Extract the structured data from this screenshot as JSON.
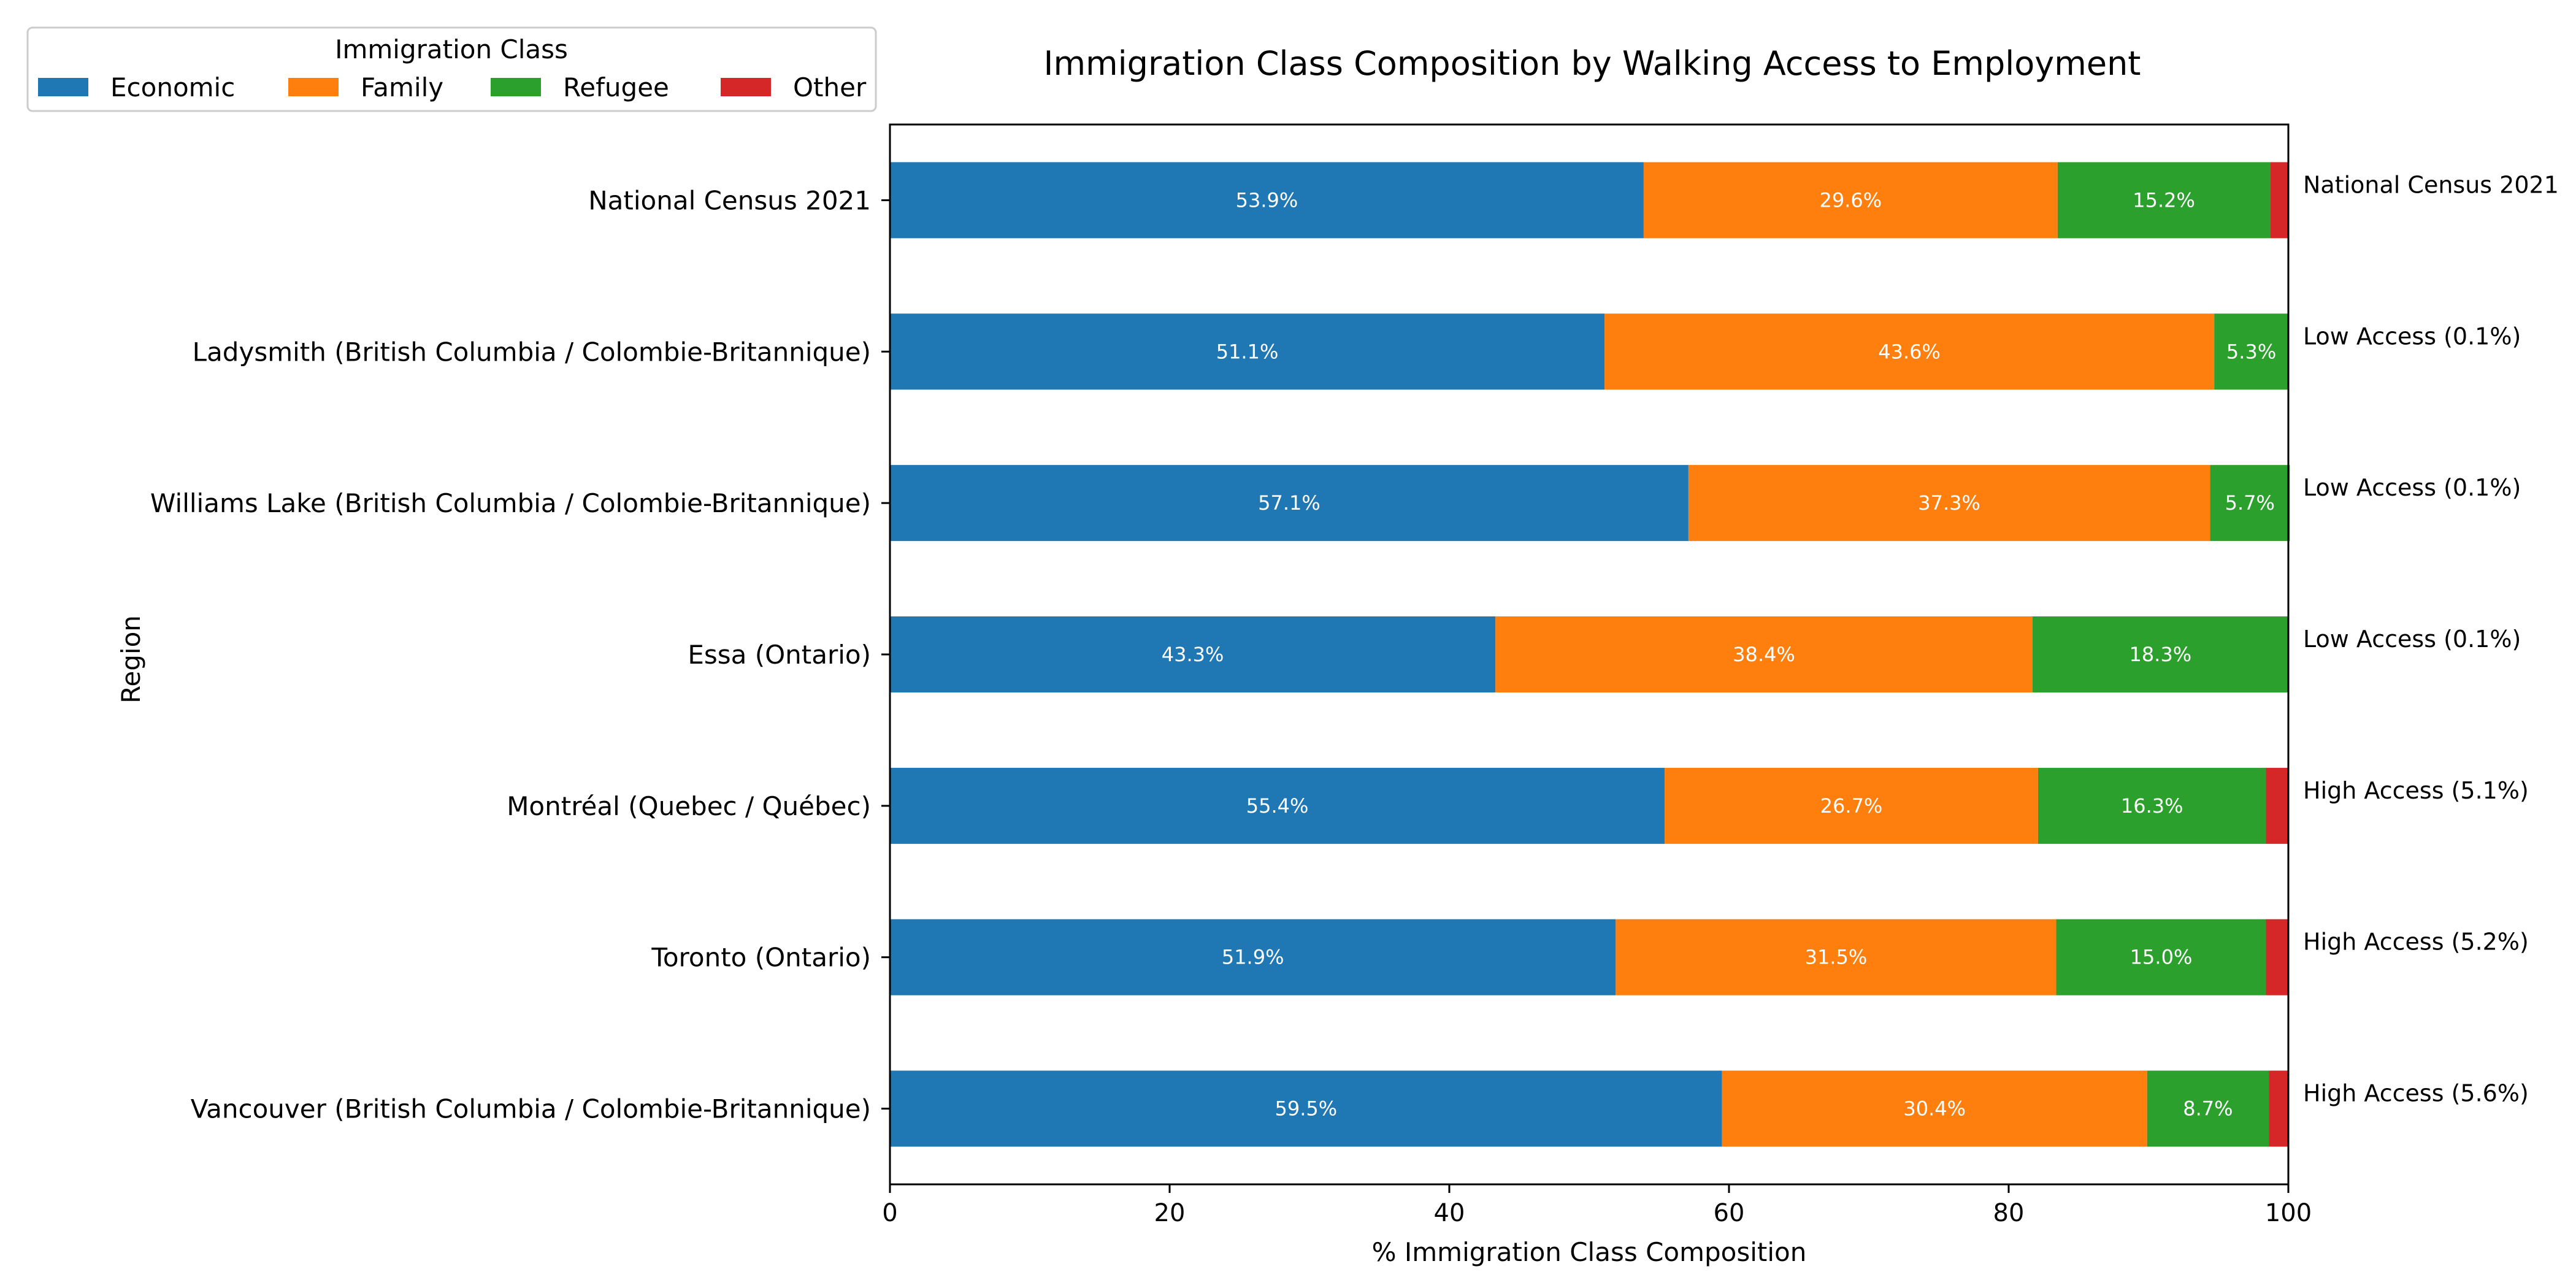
{
  "chart_data": {
    "type": "bar",
    "orientation": "horizontal",
    "stacked": true,
    "title": "Immigration Class Composition by Walking Access to Employment",
    "xlabel": "% Immigration Class Composition",
    "ylabel": "Region",
    "xlim": [
      0,
      100
    ],
    "xticks": [
      "0",
      "20",
      "40",
      "60",
      "80",
      "100"
    ],
    "grid": false,
    "legend": {
      "title": "Immigration Class",
      "placement": "top-left"
    },
    "categories": [
      "National Census 2021",
      "Ladysmith (British Columbia / Colombie-Britannique)",
      "Williams Lake (British Columbia / Colombie-Britannique)",
      "Essa (Ontario)",
      "Montréal (Quebec / Québec)",
      "Toronto (Ontario)",
      "Vancouver (British Columbia / Colombie-Britannique)"
    ],
    "right_labels": [
      "National Census 2021",
      "Low Access (0.1%)",
      "Low Access (0.1%)",
      "Low Access (0.1%)",
      "High Access (5.1%)",
      "High Access (5.2%)",
      "High Access (5.6%)"
    ],
    "series": [
      {
        "name": "Economic",
        "color": "#1f77b4",
        "values": [
          53.9,
          51.1,
          57.1,
          43.3,
          55.4,
          51.9,
          59.5
        ],
        "labels": [
          "53.9%",
          "51.1%",
          "57.1%",
          "43.3%",
          "55.4%",
          "51.9%",
          "59.5%"
        ]
      },
      {
        "name": "Family",
        "color": "#ff7f0e",
        "values": [
          29.6,
          43.6,
          37.3,
          38.4,
          26.7,
          31.5,
          30.4
        ],
        "labels": [
          "29.6%",
          "43.6%",
          "37.3%",
          "38.4%",
          "26.7%",
          "31.5%",
          "30.4%"
        ]
      },
      {
        "name": "Refugee",
        "color": "#2ca02c",
        "values": [
          15.2,
          5.3,
          5.7,
          18.3,
          16.3,
          15.0,
          8.7
        ],
        "labels": [
          "15.2%",
          "5.3%",
          "5.7%",
          "18.3%",
          "16.3%",
          "15.0%",
          "8.7%"
        ]
      },
      {
        "name": "Other",
        "color": "#d62728",
        "values": [
          1.3,
          0.0,
          0.0,
          0.0,
          1.6,
          1.6,
          1.4
        ],
        "labels": [
          "",
          "",
          "",
          "",
          "",
          "",
          ""
        ]
      }
    ]
  }
}
